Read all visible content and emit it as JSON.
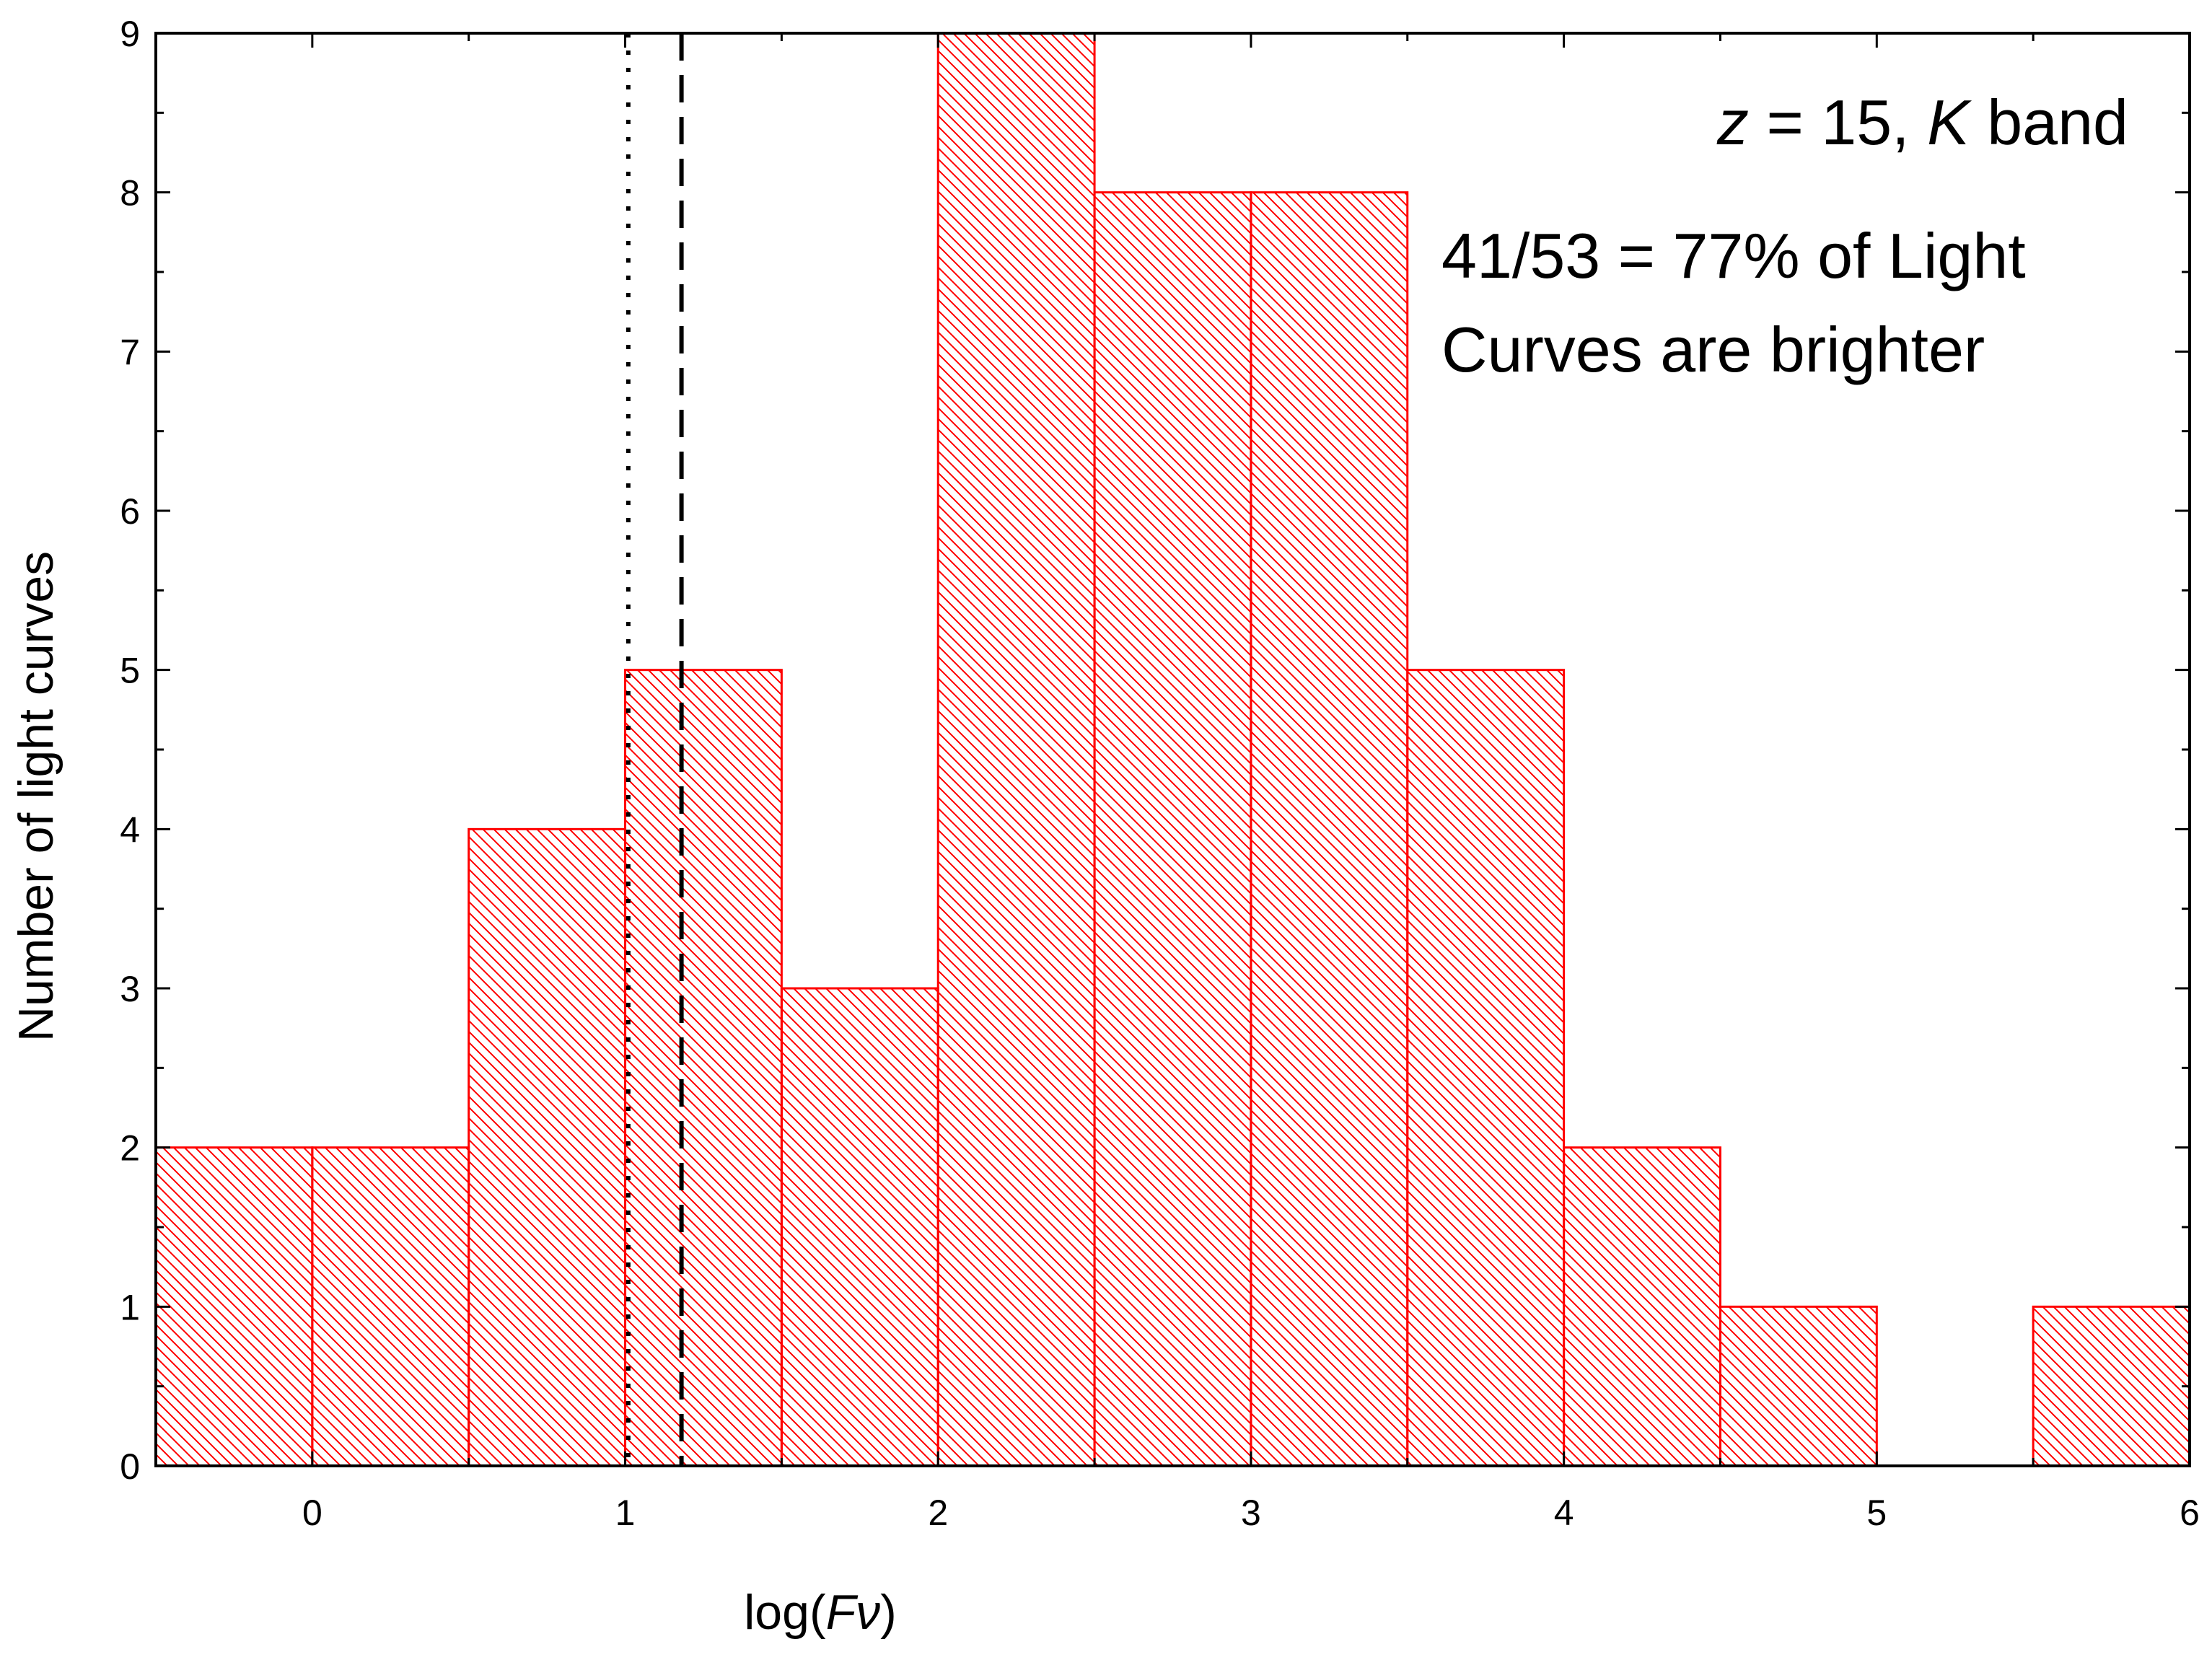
{
  "chart_data": {
    "type": "bar",
    "subtype": "histogram",
    "bin_width": 0.5,
    "bins": [
      {
        "x0": -0.5,
        "x1": 0.0,
        "count": 2
      },
      {
        "x0": 0.0,
        "x1": 0.5,
        "count": 2
      },
      {
        "x0": 0.5,
        "x1": 1.0,
        "count": 4
      },
      {
        "x0": 1.0,
        "x1": 1.5,
        "count": 5
      },
      {
        "x0": 1.5,
        "x1": 2.0,
        "count": 3
      },
      {
        "x0": 2.0,
        "x1": 2.5,
        "count": 9
      },
      {
        "x0": 2.5,
        "x1": 3.0,
        "count": 8
      },
      {
        "x0": 3.0,
        "x1": 3.5,
        "count": 8
      },
      {
        "x0": 3.5,
        "x1": 4.0,
        "count": 5
      },
      {
        "x0": 4.0,
        "x1": 4.5,
        "count": 2
      },
      {
        "x0": 4.5,
        "x1": 5.0,
        "count": 1
      },
      {
        "x0": 5.5,
        "x1": 6.0,
        "count": 1
      }
    ],
    "xlabel": {
      "prefix": "log(",
      "var": "F",
      "sub": "ν",
      "suffix": ")"
    },
    "ylabel": "Number of light curves",
    "xlim": [
      -0.5,
      6
    ],
    "ylim": [
      0,
      9
    ],
    "xticks": [
      "0",
      "1",
      "2",
      "3",
      "4",
      "5",
      "6"
    ],
    "yticks": [
      "0",
      "1",
      "2",
      "3",
      "4",
      "5",
      "6",
      "7",
      "8",
      "9"
    ],
    "reference_lines": [
      {
        "style": "dotted",
        "x": 1.01
      },
      {
        "style": "dashed",
        "x": 1.18
      }
    ],
    "annotation": {
      "line1": {
        "z": "z",
        "mid": " = 15, ",
        "band": "K",
        "tail": " band"
      },
      "line2": "41/53 = 77% of Light",
      "line3": "Curves are brighter"
    },
    "bar_color": "#ff0000",
    "fill_pattern": "diagonal-hatch",
    "grid": false
  }
}
